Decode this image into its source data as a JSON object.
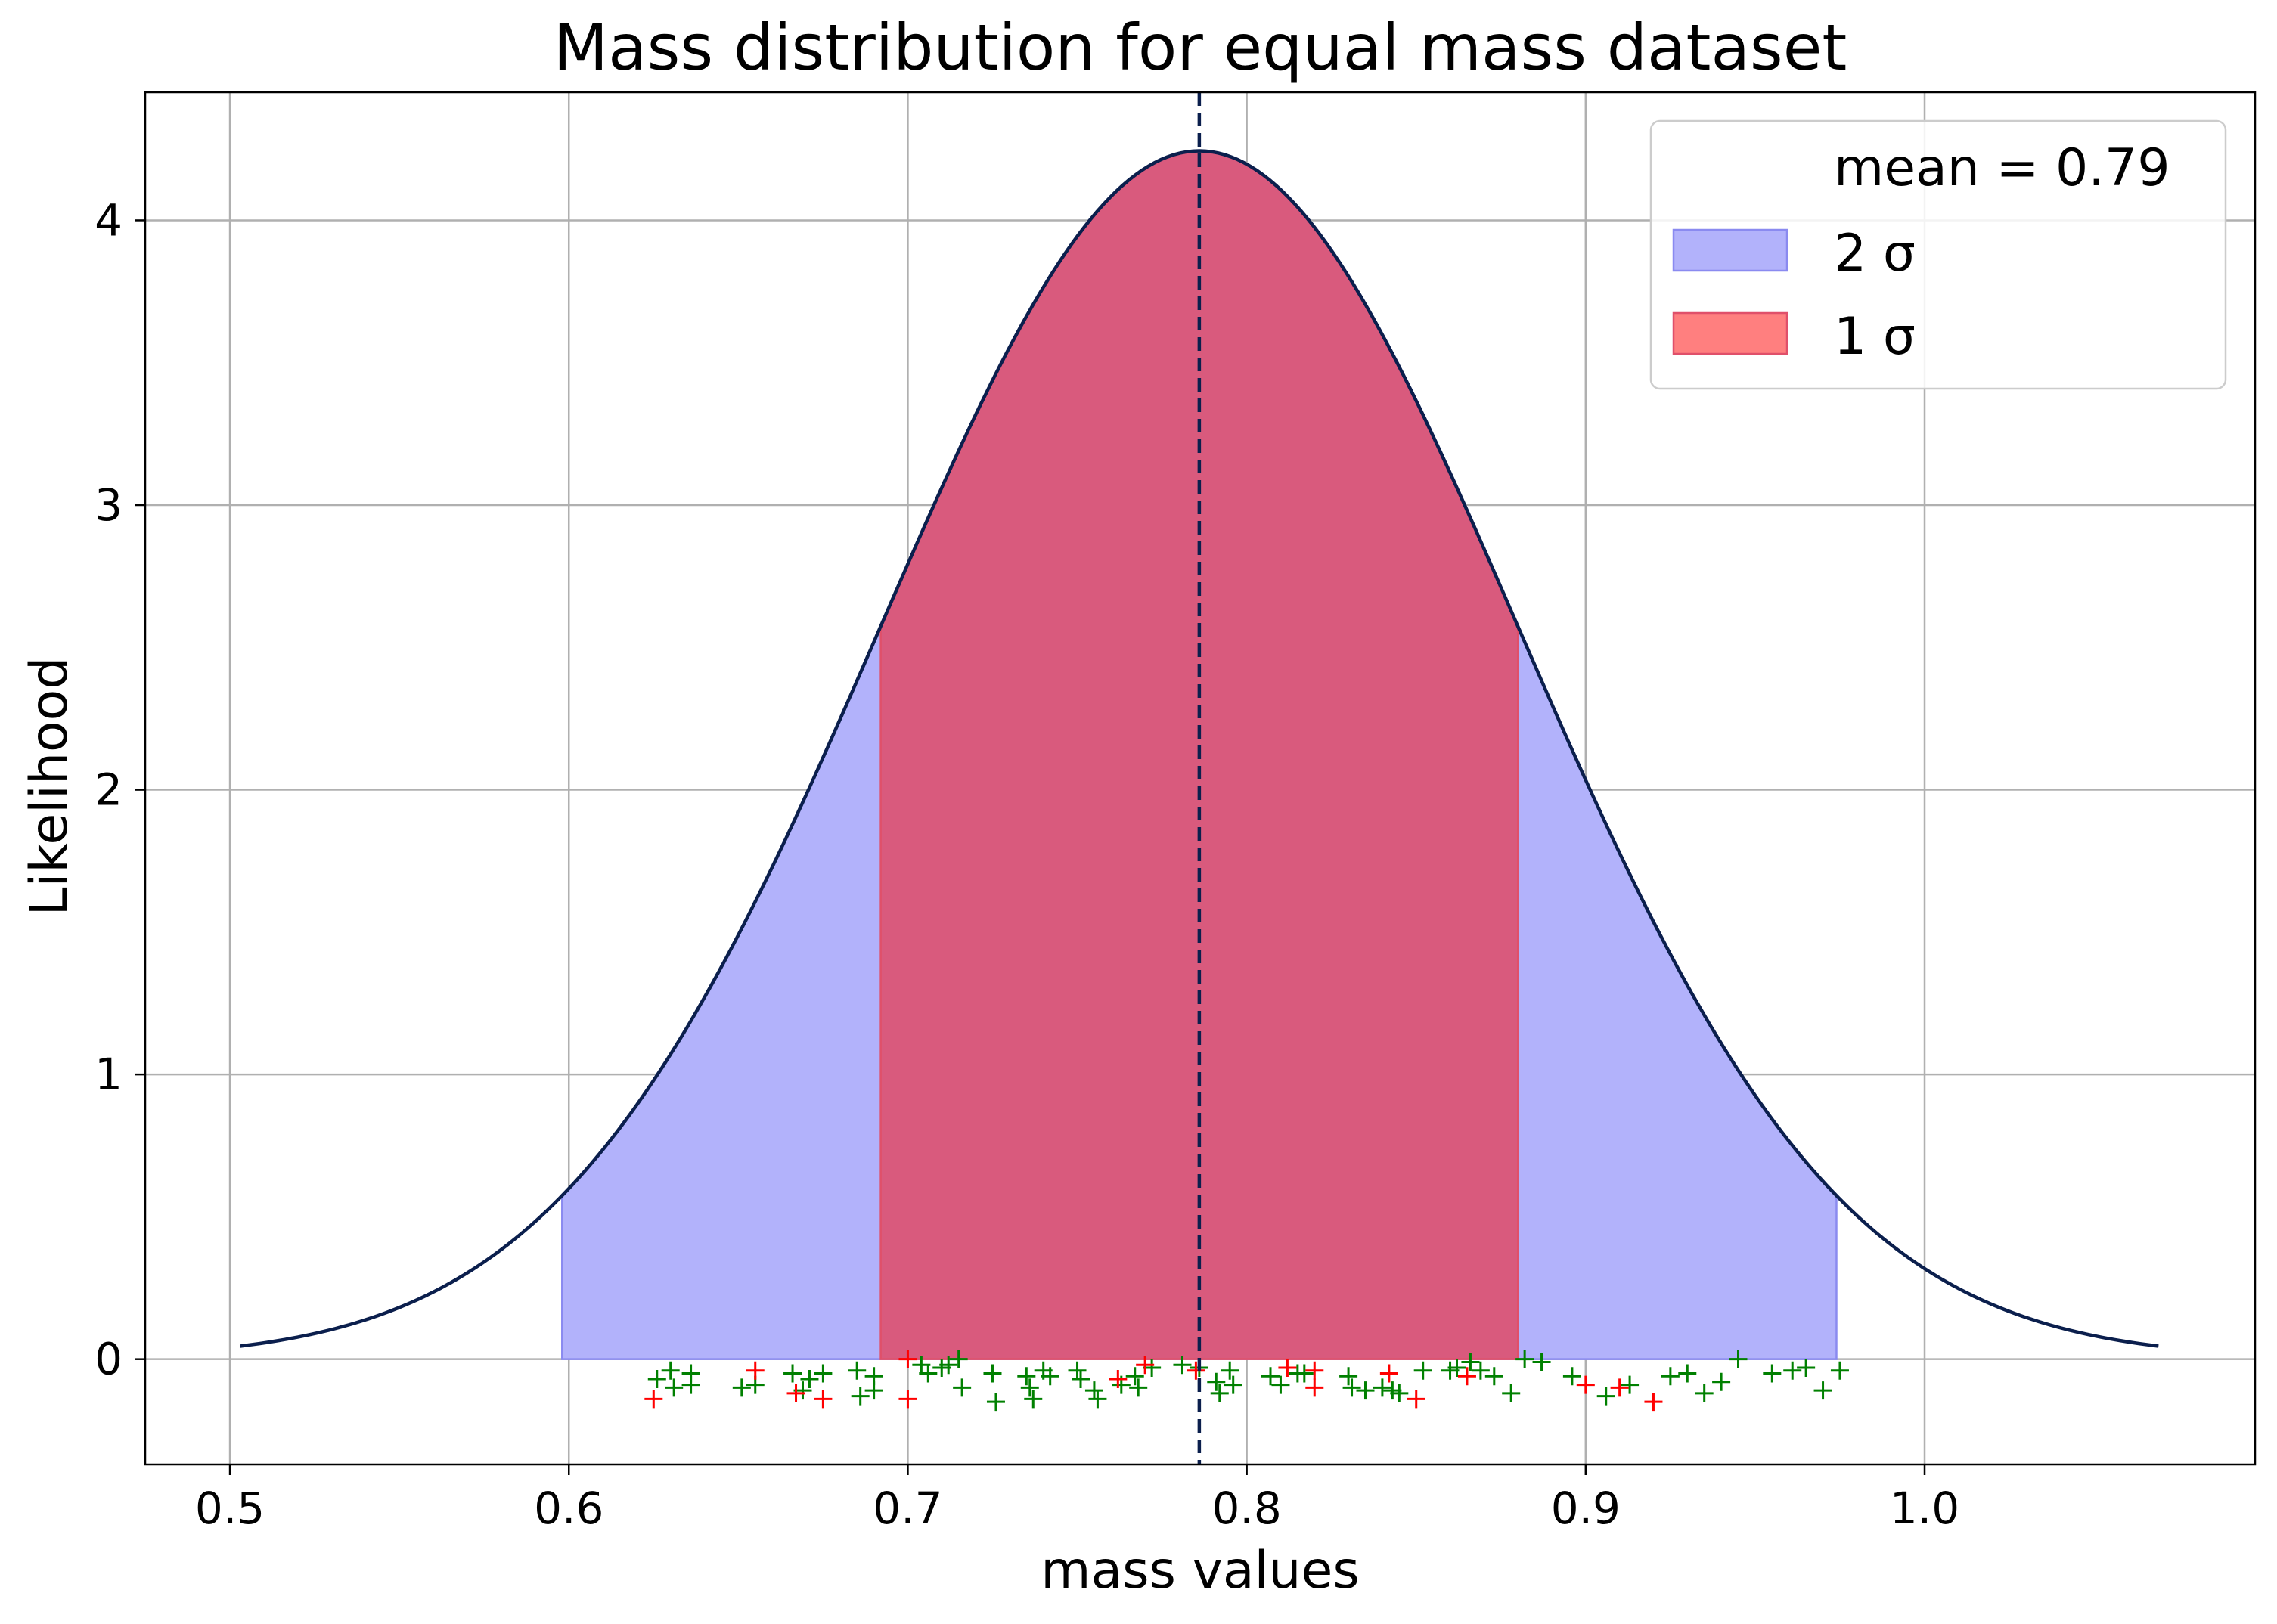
{
  "chart_data": {
    "type": "area",
    "title": "Mass distribution for equal mass dataset",
    "xlabel": "mass values",
    "ylabel": "Likelihood",
    "xlim": [
      0.475,
      1.0975
    ],
    "ylim": [
      -0.37,
      4.45
    ],
    "xticks": [
      0.5,
      0.6,
      0.7,
      0.8,
      0.9,
      1.0
    ],
    "xtick_labels": [
      "0.5",
      "0.6",
      "0.7",
      "0.8",
      "0.9",
      "1.0"
    ],
    "yticks": [
      0,
      1,
      2,
      3,
      4
    ],
    "ytick_labels": [
      "0",
      "1",
      "2",
      "3",
      "4"
    ],
    "grid": true,
    "legend_position": "top-right",
    "curve": {
      "mean": 0.786,
      "sigma": 0.094,
      "x_range": [
        0.503,
        1.069
      ],
      "color": "#0b1f4d"
    },
    "mean_line": {
      "x": 0.786,
      "label": "mean = 0.79",
      "color": "#0b1f4d"
    },
    "bands": [
      {
        "name": "2 σ",
        "range": [
          0.598,
          0.974
        ],
        "color": "#b2b2fb",
        "edge": "#8a8af0"
      },
      {
        "name": "1 σ",
        "range": [
          0.692,
          0.88
        ],
        "color": "#d95a7d",
        "edge": "#e0506a",
        "legend_color": "#ff7f7f"
      }
    ],
    "points_green": [
      [
        0.626,
        -0.07
      ],
      [
        0.63,
        -0.04
      ],
      [
        0.631,
        -0.1
      ],
      [
        0.636,
        -0.05
      ],
      [
        0.636,
        -0.09
      ],
      [
        0.651,
        -0.1
      ],
      [
        0.655,
        -0.09
      ],
      [
        0.666,
        -0.05
      ],
      [
        0.669,
        -0.11
      ],
      [
        0.671,
        -0.07
      ],
      [
        0.675,
        -0.05
      ],
      [
        0.685,
        -0.04
      ],
      [
        0.686,
        -0.13
      ],
      [
        0.69,
        -0.06
      ],
      [
        0.69,
        -0.11
      ],
      [
        0.704,
        -0.02
      ],
      [
        0.706,
        -0.05
      ],
      [
        0.71,
        -0.03
      ],
      [
        0.712,
        -0.02
      ],
      [
        0.715,
        0.0
      ],
      [
        0.716,
        -0.1
      ],
      [
        0.725,
        -0.05
      ],
      [
        0.726,
        -0.15
      ],
      [
        0.735,
        -0.06
      ],
      [
        0.736,
        -0.1
      ],
      [
        0.737,
        -0.14
      ],
      [
        0.74,
        -0.04
      ],
      [
        0.742,
        -0.06
      ],
      [
        0.75,
        -0.04
      ],
      [
        0.751,
        -0.07
      ],
      [
        0.755,
        -0.11
      ],
      [
        0.756,
        -0.14
      ],
      [
        0.763,
        -0.09
      ],
      [
        0.767,
        -0.06
      ],
      [
        0.768,
        -0.1
      ],
      [
        0.772,
        -0.03
      ],
      [
        0.781,
        -0.02
      ],
      [
        0.786,
        -0.03
      ],
      [
        0.791,
        -0.08
      ],
      [
        0.792,
        -0.12
      ],
      [
        0.795,
        -0.04
      ],
      [
        0.796,
        -0.09
      ],
      [
        0.807,
        -0.06
      ],
      [
        0.81,
        -0.09
      ],
      [
        0.815,
        -0.05
      ],
      [
        0.817,
        -0.05
      ],
      [
        0.83,
        -0.06
      ],
      [
        0.831,
        -0.1
      ],
      [
        0.835,
        -0.11
      ],
      [
        0.84,
        -0.1
      ],
      [
        0.843,
        -0.11
      ],
      [
        0.845,
        -0.12
      ],
      [
        0.852,
        -0.04
      ],
      [
        0.86,
        -0.04
      ],
      [
        0.862,
        -0.03
      ],
      [
        0.866,
        -0.01
      ],
      [
        0.869,
        -0.04
      ],
      [
        0.873,
        -0.06
      ],
      [
        0.878,
        -0.12
      ],
      [
        0.882,
        0.0
      ],
      [
        0.887,
        -0.01
      ],
      [
        0.896,
        -0.06
      ],
      [
        0.906,
        -0.13
      ],
      [
        0.913,
        -0.09
      ],
      [
        0.925,
        -0.06
      ],
      [
        0.93,
        -0.05
      ],
      [
        0.935,
        -0.12
      ],
      [
        0.94,
        -0.08
      ],
      [
        0.945,
        0.0
      ],
      [
        0.955,
        -0.05
      ],
      [
        0.961,
        -0.04
      ],
      [
        0.965,
        -0.03
      ],
      [
        0.97,
        -0.11
      ],
      [
        0.975,
        -0.04
      ]
    ],
    "points_red": [
      [
        0.625,
        -0.14
      ],
      [
        0.655,
        -0.04
      ],
      [
        0.667,
        -0.12
      ],
      [
        0.675,
        -0.14
      ],
      [
        0.7,
        0.0
      ],
      [
        0.7,
        -0.14
      ],
      [
        0.762,
        -0.07
      ],
      [
        0.77,
        -0.02
      ],
      [
        0.785,
        -0.04
      ],
      [
        0.812,
        -0.03
      ],
      [
        0.82,
        -0.04
      ],
      [
        0.82,
        -0.1
      ],
      [
        0.842,
        -0.05
      ],
      [
        0.85,
        -0.14
      ],
      [
        0.865,
        -0.06
      ],
      [
        0.9,
        -0.09
      ],
      [
        0.91,
        -0.1
      ],
      [
        0.92,
        -0.15
      ]
    ]
  }
}
